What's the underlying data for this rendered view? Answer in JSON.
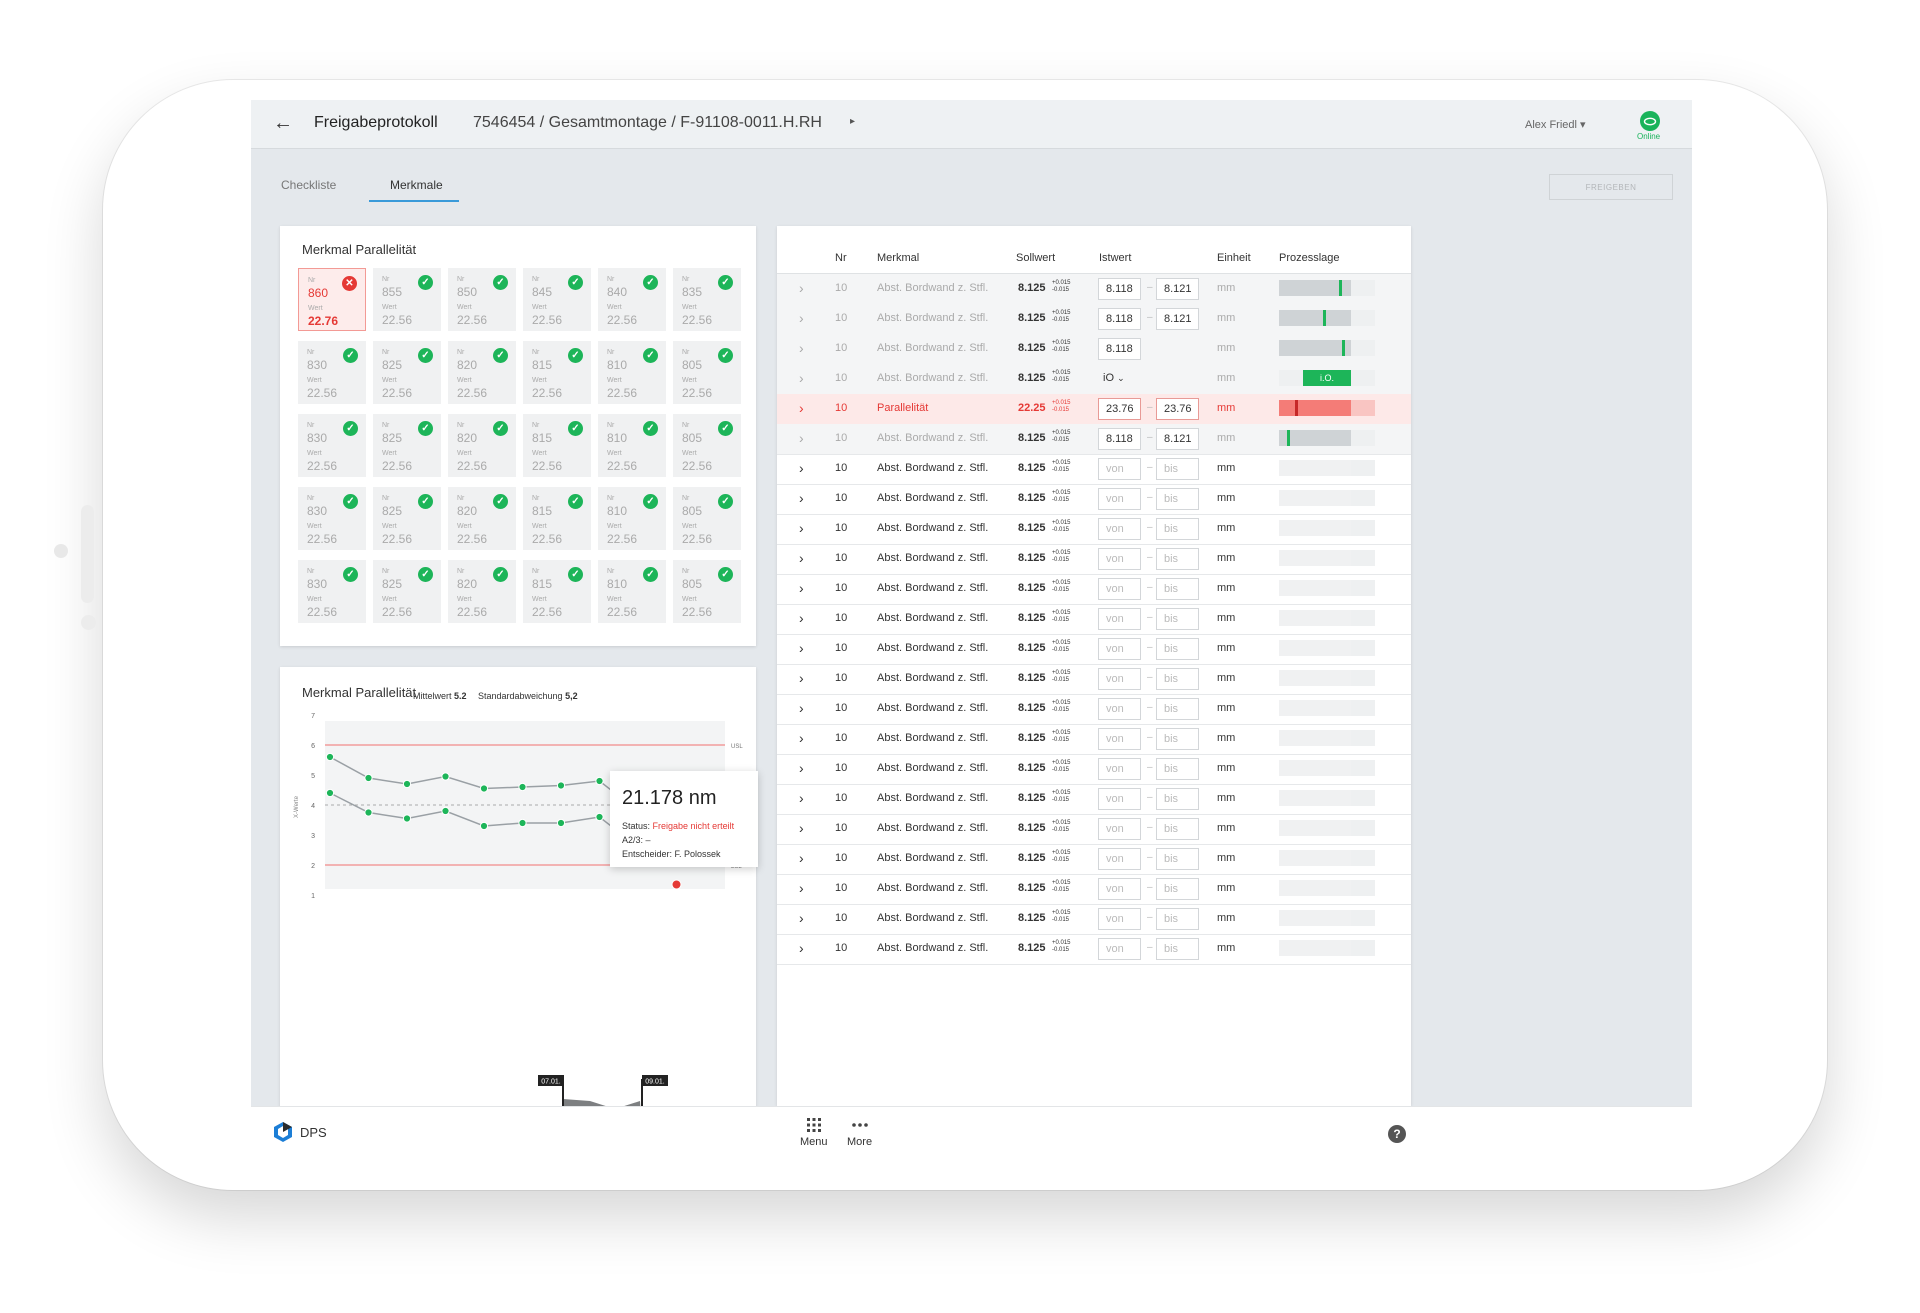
{
  "header": {
    "back": "←",
    "title": "Freigabeprotokoll",
    "breadcrumb": "7546454 / Gesamtmontage / F-91108-0011.H.RH",
    "crumb_arrow": "▸",
    "user": "Alex Friedl ▾",
    "online_label": "Online",
    "online_icon": "cloud-icon"
  },
  "tabs": [
    {
      "label": "Checkliste"
    },
    {
      "label": "Merkmale"
    }
  ],
  "freigeben": "FREIGEBEN",
  "tiles_card": {
    "title": "Merkmal Parallelität",
    "label_nr": "Nr",
    "label_wert": "Wert",
    "rows": [
      [
        {
          "nr": "860",
          "wert": "22.76",
          "status": "error"
        },
        {
          "nr": "855",
          "wert": "22.56",
          "status": "ok"
        },
        {
          "nr": "850",
          "wert": "22.56",
          "status": "ok"
        },
        {
          "nr": "845",
          "wert": "22.56",
          "status": "ok"
        },
        {
          "nr": "840",
          "wert": "22.56",
          "status": "ok"
        },
        {
          "nr": "835",
          "wert": "22.56",
          "status": "ok"
        }
      ],
      [
        {
          "nr": "830",
          "wert": "22.56",
          "status": "ok"
        },
        {
          "nr": "825",
          "wert": "22.56",
          "status": "ok"
        },
        {
          "nr": "820",
          "wert": "22.56",
          "status": "ok"
        },
        {
          "nr": "815",
          "wert": "22.56",
          "status": "ok"
        },
        {
          "nr": "810",
          "wert": "22.56",
          "status": "ok"
        },
        {
          "nr": "805",
          "wert": "22.56",
          "status": "ok"
        }
      ],
      [
        {
          "nr": "830",
          "wert": "22.56",
          "status": "ok"
        },
        {
          "nr": "825",
          "wert": "22.56",
          "status": "ok"
        },
        {
          "nr": "820",
          "wert": "22.56",
          "status": "ok"
        },
        {
          "nr": "815",
          "wert": "22.56",
          "status": "ok"
        },
        {
          "nr": "810",
          "wert": "22.56",
          "status": "ok"
        },
        {
          "nr": "805",
          "wert": "22.56",
          "status": "ok"
        }
      ],
      [
        {
          "nr": "830",
          "wert": "22.56",
          "status": "ok"
        },
        {
          "nr": "825",
          "wert": "22.56",
          "status": "ok"
        },
        {
          "nr": "820",
          "wert": "22.56",
          "status": "ok"
        },
        {
          "nr": "815",
          "wert": "22.56",
          "status": "ok"
        },
        {
          "nr": "810",
          "wert": "22.56",
          "status": "ok"
        },
        {
          "nr": "805",
          "wert": "22.56",
          "status": "ok"
        }
      ],
      [
        {
          "nr": "830",
          "wert": "22.56",
          "status": "ok"
        },
        {
          "nr": "825",
          "wert": "22.56",
          "status": "ok"
        },
        {
          "nr": "820",
          "wert": "22.56",
          "status": "ok"
        },
        {
          "nr": "815",
          "wert": "22.56",
          "status": "ok"
        },
        {
          "nr": "810",
          "wert": "22.56",
          "status": "ok"
        },
        {
          "nr": "805",
          "wert": "22.56",
          "status": "ok"
        }
      ]
    ]
  },
  "chart_card": {
    "title": "Merkmal Parallelität",
    "mittelwert_label": "Mittelwert",
    "mittelwert": "5.2",
    "std_label": "Standardabweichung",
    "std": "5,2",
    "tooltip": {
      "value": "21.178 nm",
      "status_label": "Status:",
      "status": "Freigabe nicht erteilt",
      "a23": "A2/3: –",
      "entscheider": "Entscheider: F. Polossek"
    },
    "timeline": {
      "from": "07.01.",
      "to": "09.01."
    }
  },
  "chart_data": {
    "type": "line",
    "ylabel": "X-Werte",
    "ylim": [
      1,
      7
    ],
    "yticks": [
      1,
      2,
      3,
      4,
      5,
      6,
      7
    ],
    "limits": [
      {
        "name": "USL",
        "value": 6
      },
      {
        "name": "LSL",
        "value": 2
      }
    ],
    "centerline": 4,
    "series": [
      {
        "values": [
          5.6,
          4.9,
          4.7,
          4.95,
          4.55,
          4.6,
          4.65,
          4.8,
          3.8
        ]
      },
      {
        "values": [
          4.4,
          3.75,
          3.55,
          3.8,
          3.3,
          3.4,
          3.4,
          3.6,
          2.6
        ]
      }
    ],
    "highlight": {
      "index": 9,
      "value": 1.35,
      "status": "error"
    }
  },
  "table": {
    "headers": {
      "nr": "Nr",
      "merkmal": "Merkmal",
      "sollwert": "Sollwert",
      "istwert": "Istwert",
      "einheit": "Einheit",
      "prozesslage": "Prozesslage"
    },
    "tol_plus": "+0.015",
    "tol_minus": "-0.015",
    "rows": [
      {
        "state": "grey",
        "nr": "10",
        "merkmal": "Abst. Bordwand z. Stfl.",
        "soll": "8.125",
        "von": "8.118",
        "bis": "8.121",
        "einheit": "mm",
        "bar_fill": 0.75,
        "bar_mark": 0.62
      },
      {
        "state": "grey",
        "nr": "10",
        "merkmal": "Abst. Bordwand z. Stfl.",
        "soll": "8.125",
        "von": "8.118",
        "bis": "8.121",
        "einheit": "mm",
        "bar_fill": 0.75,
        "bar_mark": 0.46
      },
      {
        "state": "grey",
        "nr": "10",
        "merkmal": "Abst. Bordwand z. Stfl.",
        "soll": "8.125",
        "von": "8.118",
        "bis": "",
        "einheit": "mm",
        "bar_fill": 0.75,
        "bar_mark": 0.66
      },
      {
        "state": "grey",
        "nr": "10",
        "merkmal": "Abst. Bordwand z. Stfl.",
        "soll": "8.125",
        "io_select": "iO",
        "einheit": "mm",
        "bar_io": "i.O."
      },
      {
        "state": "alert",
        "nr": "10",
        "merkmal": "Parallelität",
        "soll": "22.25",
        "von": "23.76",
        "bis": "23.76",
        "einheit": "mm",
        "bar_fill": 0.75,
        "bar_mark": 0.17
      },
      {
        "state": "grey",
        "nr": "10",
        "merkmal": "Abst. Bordwand z. Stfl.",
        "soll": "8.125",
        "von": "8.118",
        "bis": "8.121",
        "einheit": "mm",
        "bar_fill": 0.75,
        "bar_mark": 0.08
      },
      {
        "state": "empty",
        "nr": "10",
        "merkmal": "Abst. Bordwand z. Stfl.",
        "soll": "8.125",
        "einheit": "mm"
      },
      {
        "state": "empty",
        "nr": "10",
        "merkmal": "Abst. Bordwand z. Stfl.",
        "soll": "8.125",
        "einheit": "mm"
      },
      {
        "state": "empty",
        "nr": "10",
        "merkmal": "Abst. Bordwand z. Stfl.",
        "soll": "8.125",
        "einheit": "mm"
      },
      {
        "state": "empty",
        "nr": "10",
        "merkmal": "Abst. Bordwand z. Stfl.",
        "soll": "8.125",
        "einheit": "mm"
      },
      {
        "state": "empty",
        "nr": "10",
        "merkmal": "Abst. Bordwand z. Stfl.",
        "soll": "8.125",
        "einheit": "mm"
      },
      {
        "state": "empty",
        "nr": "10",
        "merkmal": "Abst. Bordwand z. Stfl.",
        "soll": "8.125",
        "einheit": "mm"
      },
      {
        "state": "empty",
        "nr": "10",
        "merkmal": "Abst. Bordwand z. Stfl.",
        "soll": "8.125",
        "einheit": "mm"
      },
      {
        "state": "empty",
        "nr": "10",
        "merkmal": "Abst. Bordwand z. Stfl.",
        "soll": "8.125",
        "einheit": "mm"
      },
      {
        "state": "empty",
        "nr": "10",
        "merkmal": "Abst. Bordwand z. Stfl.",
        "soll": "8.125",
        "einheit": "mm"
      },
      {
        "state": "empty",
        "nr": "10",
        "merkmal": "Abst. Bordwand z. Stfl.",
        "soll": "8.125",
        "einheit": "mm"
      },
      {
        "state": "empty",
        "nr": "10",
        "merkmal": "Abst. Bordwand z. Stfl.",
        "soll": "8.125",
        "einheit": "mm"
      },
      {
        "state": "empty",
        "nr": "10",
        "merkmal": "Abst. Bordwand z. Stfl.",
        "soll": "8.125",
        "einheit": "mm"
      },
      {
        "state": "empty",
        "nr": "10",
        "merkmal": "Abst. Bordwand z. Stfl.",
        "soll": "8.125",
        "einheit": "mm"
      },
      {
        "state": "empty",
        "nr": "10",
        "merkmal": "Abst. Bordwand z. Stfl.",
        "soll": "8.125",
        "einheit": "mm"
      },
      {
        "state": "empty",
        "nr": "10",
        "merkmal": "Abst. Bordwand z. Stfl.",
        "soll": "8.125",
        "einheit": "mm"
      },
      {
        "state": "empty",
        "nr": "10",
        "merkmal": "Abst. Bordwand z. Stfl.",
        "soll": "8.125",
        "einheit": "mm"
      },
      {
        "state": "empty",
        "nr": "10",
        "merkmal": "Abst. Bordwand z. Stfl.",
        "soll": "8.125",
        "einheit": "mm"
      }
    ],
    "placeholder_von": "von",
    "placeholder_bis": "bis"
  },
  "bottom": {
    "brand": "DPS",
    "menu": "Menu",
    "more": "More",
    "help": "?",
    "menu_icon": "grid-icon",
    "more_icon": "dots-icon",
    "help_icon": "help-icon"
  },
  "colors": {
    "accent": "#3a9ad9",
    "ok": "#1db559",
    "error": "#e53935"
  }
}
